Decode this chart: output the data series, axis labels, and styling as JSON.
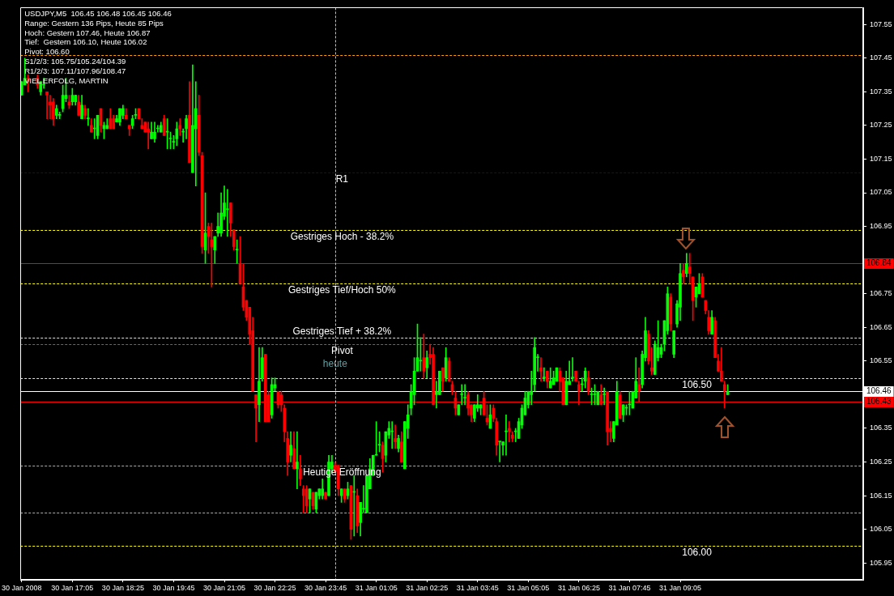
{
  "chart_data": {
    "type": "candlestick",
    "title": "USDJPY,M5  106.45 106.48 106.45 106.46",
    "annotations": [
      "Range: Gestern 136 Pips, Heute 85 Pips",
      "Hoch: Gestern 107.46, Heute 106.87",
      "Tief:  Gestern 106.10, Heute 106.02",
      "Pivot: 106.60",
      "S1/2/3: 105.75/105.24/104.39",
      "R1/2/3: 107.11/107.96/108.47",
      "VIEL ERFOLG, MARTIN",
      {
        "text": "heute",
        "x": "2008-01-31T00:00",
        "y": 106.54
      }
    ],
    "x": [
      "2008-01-30T15:45",
      "2008-01-30T15:50",
      "2008-01-30T15:55",
      "2008-01-30T16:10",
      "2008-01-30T16:15",
      "2008-01-30T16:20",
      "2008-01-30T16:25",
      "2008-01-30T16:30",
      "2008-01-30T16:35",
      "2008-01-30T16:40",
      "2008-01-30T16:45",
      "2008-01-30T16:50",
      "2008-01-30T16:55",
      "2008-01-30T17:00",
      "2008-01-30T17:05",
      "2008-01-30T17:10",
      "2008-01-30T17:15",
      "2008-01-30T17:20",
      "2008-01-30T17:25",
      "2008-01-30T17:30",
      "2008-01-30T17:35",
      "2008-01-30T17:40",
      "2008-01-30T17:45",
      "2008-01-30T17:50",
      "2008-01-30T17:55",
      "2008-01-30T18:00",
      "2008-01-30T18:05",
      "2008-01-30T18:10",
      "2008-01-30T18:15",
      "2008-01-30T18:20",
      "2008-01-30T18:25",
      "2008-01-30T18:30",
      "2008-01-30T18:35",
      "2008-01-30T18:40",
      "2008-01-30T18:45",
      "2008-01-30T18:50",
      "2008-01-30T18:55",
      "2008-01-30T19:00",
      "2008-01-30T19:05",
      "2008-01-30T19:10",
      "2008-01-30T19:15",
      "2008-01-30T19:20",
      "2008-01-30T19:25",
      "2008-01-30T19:30",
      "2008-01-30T19:35",
      "2008-01-30T19:40",
      "2008-01-30T19:45",
      "2008-01-30T19:50",
      "2008-01-30T19:55",
      "2008-01-30T20:00",
      "2008-01-30T20:05",
      "2008-01-30T20:10",
      "2008-01-30T20:15",
      "2008-01-30T20:20",
      "2008-01-30T20:25",
      "2008-01-30T20:30",
      "2008-01-30T20:35",
      "2008-01-30T20:40",
      "2008-01-30T20:45",
      "2008-01-30T20:50",
      "2008-01-30T20:55",
      "2008-01-30T21:00",
      "2008-01-30T21:05",
      "2008-01-30T21:10",
      "2008-01-30T21:15",
      "2008-01-30T21:20",
      "2008-01-30T21:25",
      "2008-01-30T21:30",
      "2008-01-30T21:35",
      "2008-01-30T21:40",
      "2008-01-30T21:45",
      "2008-01-30T21:50",
      "2008-01-30T21:55",
      "2008-01-30T22:00",
      "2008-01-30T22:05",
      "2008-01-30T22:10",
      "2008-01-30T22:15",
      "2008-01-30T22:20",
      "2008-01-30T22:25",
      "2008-01-30T22:30",
      "2008-01-30T22:35",
      "2008-01-30T22:40",
      "2008-01-30T22:45",
      "2008-01-30T22:50",
      "2008-01-30T22:55",
      "2008-01-30T23:00",
      "2008-01-30T23:05",
      "2008-01-30T23:10",
      "2008-01-30T23:15",
      "2008-01-30T23:20",
      "2008-01-30T23:25",
      "2008-01-30T23:30",
      "2008-01-30T23:35",
      "2008-01-30T23:40",
      "2008-01-30T23:45",
      "2008-01-30T23:50",
      "2008-01-30T23:55",
      "2008-01-31T00:00",
      "2008-01-31T00:05",
      "2008-01-31T00:10",
      "2008-01-31T00:15",
      "2008-01-31T00:20",
      "2008-01-31T00:25",
      "2008-01-31T00:30",
      "2008-01-31T00:35",
      "2008-01-31T00:40",
      "2008-01-31T00:45",
      "2008-01-31T00:50",
      "2008-01-31T00:55",
      "2008-01-31T01:00",
      "2008-01-31T01:05",
      "2008-01-31T01:10",
      "2008-01-31T01:15",
      "2008-01-31T01:20",
      "2008-01-31T01:25",
      "2008-01-31T01:30",
      "2008-01-31T01:35",
      "2008-01-31T01:40",
      "2008-01-31T01:45",
      "2008-01-31T01:50",
      "2008-01-31T01:55",
      "2008-01-31T02:00",
      "2008-01-31T02:05",
      "2008-01-31T02:10",
      "2008-01-31T02:15",
      "2008-01-31T02:20",
      "2008-01-31T02:25",
      "2008-01-31T02:30",
      "2008-01-31T02:35",
      "2008-01-31T02:40",
      "2008-01-31T02:45",
      "2008-01-31T02:50",
      "2008-01-31T02:55",
      "2008-01-31T03:00",
      "2008-01-31T03:05",
      "2008-01-31T03:10",
      "2008-01-31T03:15",
      "2008-01-31T03:20",
      "2008-01-31T03:25",
      "2008-01-31T03:30",
      "2008-01-31T03:35",
      "2008-01-31T03:40",
      "2008-01-31T03:45",
      "2008-01-31T03:50",
      "2008-01-31T03:55",
      "2008-01-31T04:00",
      "2008-01-31T04:05",
      "2008-01-31T04:10",
      "2008-01-31T04:15",
      "2008-01-31T04:20",
      "2008-01-31T04:25",
      "2008-01-31T04:30",
      "2008-01-31T04:35",
      "2008-01-31T04:40",
      "2008-01-31T04:45",
      "2008-01-31T04:50",
      "2008-01-31T04:55",
      "2008-01-31T05:00",
      "2008-01-31T05:05",
      "2008-01-31T05:10",
      "2008-01-31T05:15",
      "2008-01-31T05:20",
      "2008-01-31T05:25",
      "2008-01-31T05:30",
      "2008-01-31T05:35",
      "2008-01-31T05:40",
      "2008-01-31T05:45",
      "2008-01-31T05:50",
      "2008-01-31T05:55",
      "2008-01-31T06:00",
      "2008-01-31T06:05",
      "2008-01-31T06:10",
      "2008-01-31T06:15",
      "2008-01-31T06:20",
      "2008-01-31T06:25",
      "2008-01-31T06:30",
      "2008-01-31T06:35",
      "2008-01-31T06:40",
      "2008-01-31T06:45",
      "2008-01-31T06:50",
      "2008-01-31T06:55",
      "2008-01-31T07:00",
      "2008-01-31T07:05",
      "2008-01-31T07:10",
      "2008-01-31T07:15",
      "2008-01-31T07:20",
      "2008-01-31T07:25",
      "2008-01-31T07:30",
      "2008-01-31T07:35",
      "2008-01-31T07:40",
      "2008-01-31T07:45",
      "2008-01-31T07:50",
      "2008-01-31T07:55",
      "2008-01-31T08:00",
      "2008-01-31T08:05",
      "2008-01-31T08:10",
      "2008-01-31T08:15",
      "2008-01-31T08:20",
      "2008-01-31T08:25",
      "2008-01-31T08:30",
      "2008-01-31T08:35",
      "2008-01-31T08:40",
      "2008-01-31T08:45",
      "2008-01-31T08:50",
      "2008-01-31T08:55",
      "2008-01-31T09:00",
      "2008-01-31T09:05",
      "2008-01-31T09:10",
      "2008-01-31T09:15",
      "2008-01-31T09:20",
      "2008-01-31T09:25",
      "2008-01-31T09:30",
      "2008-01-31T09:35",
      "2008-01-31T09:40",
      "2008-01-31T09:45",
      "2008-01-31T09:50",
      "2008-01-31T09:55",
      "2008-01-31T10:00",
      "2008-01-31T10:05",
      "2008-01-31T10:10",
      "2008-01-31T10:15",
      "2008-01-31T10:20"
    ],
    "ohlc": [
      [
        107.34,
        107.38,
        107.34,
        107.38
      ],
      [
        107.37,
        107.45,
        107.37,
        107.39
      ],
      [
        107.39,
        107.4,
        107.35,
        107.38
      ],
      [
        107.39,
        107.4,
        107.36,
        107.37
      ],
      [
        107.35,
        107.38,
        107.34,
        107.38
      ],
      [
        107.37,
        107.39,
        107.36,
        107.37
      ],
      [
        107.35,
        107.35,
        107.27,
        107.34
      ],
      [
        107.32,
        107.34,
        107.27,
        107.31
      ],
      [
        107.32,
        107.33,
        107.25,
        107.27
      ],
      [
        107.28,
        107.31,
        107.27,
        107.3
      ],
      [
        107.28,
        107.29,
        107.27,
        107.28
      ],
      [
        107.3,
        107.37,
        107.29,
        107.34
      ],
      [
        107.33,
        107.39,
        107.32,
        107.34
      ],
      [
        107.32,
        107.34,
        107.3,
        107.31
      ],
      [
        107.32,
        107.36,
        107.31,
        107.34
      ],
      [
        107.32,
        107.34,
        107.31,
        107.34
      ],
      [
        107.32,
        107.34,
        107.28,
        107.28
      ],
      [
        107.27,
        107.34,
        107.27,
        107.31
      ],
      [
        107.3,
        107.31,
        107.27,
        107.28
      ],
      [
        107.27,
        107.3,
        107.25,
        107.27
      ],
      [
        107.25,
        107.27,
        107.23,
        107.23
      ],
      [
        107.24,
        107.27,
        107.21,
        107.24
      ],
      [
        107.22,
        107.28,
        107.21,
        107.28
      ],
      [
        107.3,
        107.3,
        107.23,
        107.25
      ],
      [
        107.24,
        107.26,
        107.21,
        107.25
      ],
      [
        107.24,
        107.27,
        107.24,
        107.25
      ],
      [
        107.27,
        107.3,
        107.24,
        107.24
      ],
      [
        107.27,
        107.28,
        107.24,
        107.24
      ],
      [
        107.26,
        107.28,
        107.26,
        107.27
      ],
      [
        107.26,
        107.3,
        107.25,
        107.3
      ],
      [
        107.28,
        107.31,
        107.27,
        107.3
      ],
      [
        107.28,
        107.3,
        107.27,
        107.27
      ],
      [
        107.25,
        107.25,
        107.22,
        107.24
      ],
      [
        107.25,
        107.28,
        107.24,
        107.27
      ],
      [
        107.28,
        107.3,
        107.27,
        107.28
      ],
      [
        107.3,
        107.3,
        107.27,
        107.27
      ],
      [
        107.25,
        107.27,
        107.24,
        107.24
      ],
      [
        107.26,
        107.26,
        107.23,
        107.23
      ],
      [
        107.24,
        107.26,
        107.18,
        107.23
      ],
      [
        107.21,
        107.26,
        107.21,
        107.23
      ],
      [
        107.21,
        107.26,
        107.2,
        107.23
      ],
      [
        107.24,
        107.25,
        107.23,
        107.24
      ],
      [
        107.23,
        107.26,
        107.23,
        107.25
      ],
      [
        107.27,
        107.28,
        107.22,
        107.22
      ],
      [
        107.23,
        107.27,
        107.18,
        107.23
      ],
      [
        107.21,
        107.23,
        107.18,
        107.21
      ],
      [
        107.2,
        107.22,
        107.18,
        107.2
      ],
      [
        107.21,
        107.26,
        107.19,
        107.24
      ],
      [
        107.25,
        107.27,
        107.22,
        107.24
      ],
      [
        107.23,
        107.24,
        107.2,
        107.23
      ],
      [
        107.24,
        107.28,
        107.21,
        107.27
      ],
      [
        107.28,
        107.38,
        107.14,
        107.14
      ],
      [
        107.11,
        107.43,
        107.11,
        107.25
      ],
      [
        107.24,
        107.38,
        107.07,
        107.3
      ],
      [
        107.28,
        107.34,
        107.16,
        107.17
      ],
      [
        107.16,
        107.17,
        106.87,
        106.89
      ],
      [
        106.88,
        107.05,
        106.84,
        106.93
      ],
      [
        106.95,
        106.96,
        106.87,
        106.92
      ],
      [
        106.91,
        106.96,
        106.77,
        106.89
      ],
      [
        106.88,
        106.92,
        106.84,
        106.92
      ],
      [
        106.93,
        106.99,
        106.92,
        106.95
      ],
      [
        106.93,
        107.05,
        106.92,
        106.99
      ],
      [
        106.98,
        107.07,
        106.97,
        107.02
      ],
      [
        107.0,
        107.06,
        106.92,
        107.0
      ],
      [
        107.02,
        107.02,
        106.92,
        106.96
      ],
      [
        106.94,
        106.94,
        106.88,
        106.89
      ],
      [
        106.88,
        106.91,
        106.84,
        106.88
      ],
      [
        106.84,
        106.92,
        106.78,
        106.78
      ],
      [
        106.77,
        106.84,
        106.7,
        106.71
      ],
      [
        106.73,
        106.73,
        106.67,
        106.68
      ],
      [
        106.71,
        106.71,
        106.6,
        106.63
      ],
      [
        106.64,
        106.68,
        106.46,
        106.46
      ],
      [
        106.45,
        106.45,
        106.31,
        106.41
      ],
      [
        106.42,
        106.59,
        106.37,
        106.49
      ],
      [
        106.5,
        106.59,
        106.49,
        106.56
      ],
      [
        106.57,
        106.57,
        106.37,
        106.37
      ],
      [
        106.45,
        106.46,
        106.37,
        106.37
      ],
      [
        106.39,
        106.5,
        106.38,
        106.48
      ],
      [
        106.47,
        106.5,
        106.46,
        106.48
      ],
      [
        106.46,
        106.46,
        106.41,
        106.42
      ],
      [
        106.45,
        106.46,
        106.4,
        106.42
      ],
      [
        106.41,
        106.42,
        106.31,
        106.34
      ],
      [
        106.32,
        106.34,
        106.21,
        106.25
      ],
      [
        106.27,
        106.34,
        106.25,
        106.3
      ],
      [
        106.29,
        106.34,
        106.23,
        106.23
      ],
      [
        106.23,
        106.34,
        106.17,
        106.25
      ],
      [
        106.23,
        106.27,
        106.18,
        106.2
      ],
      [
        106.17,
        106.18,
        106.1,
        106.15
      ],
      [
        106.17,
        106.18,
        106.1,
        106.12
      ],
      [
        106.14,
        106.17,
        106.1,
        106.17
      ],
      [
        106.16,
        106.16,
        106.11,
        106.12
      ],
      [
        106.11,
        106.16,
        106.1,
        106.16
      ],
      [
        106.15,
        106.17,
        106.14,
        106.17
      ],
      [
        106.15,
        106.2,
        106.14,
        106.17
      ],
      [
        106.16,
        106.16,
        106.14,
        106.14
      ],
      [
        106.15,
        106.27,
        106.15,
        106.25
      ],
      [
        106.23,
        106.27,
        106.22,
        106.25
      ],
      [
        106.24,
        106.25,
        106.22,
        106.22
      ],
      [
        106.24,
        106.24,
        106.15,
        106.17
      ],
      [
        106.15,
        106.17,
        106.13,
        106.17
      ],
      [
        106.17,
        106.17,
        106.13,
        106.14
      ],
      [
        106.15,
        106.19,
        106.14,
        106.17
      ],
      [
        106.18,
        106.18,
        106.02,
        106.05
      ],
      [
        106.16,
        106.21,
        106.03,
        106.16
      ],
      [
        106.15,
        106.17,
        106.04,
        106.06
      ],
      [
        106.07,
        106.13,
        106.03,
        106.13
      ],
      [
        106.11,
        106.18,
        106.1,
        106.11
      ],
      [
        106.1,
        106.21,
        106.1,
        106.21
      ],
      [
        106.17,
        106.26,
        106.17,
        106.23
      ],
      [
        106.21,
        106.27,
        106.21,
        106.27
      ],
      [
        106.27,
        106.37,
        106.27,
        106.27
      ],
      [
        106.3,
        106.34,
        106.28,
        106.3
      ],
      [
        106.3,
        106.31,
        106.22,
        106.26
      ],
      [
        106.27,
        106.34,
        106.25,
        106.34
      ],
      [
        106.33,
        106.37,
        106.32,
        106.35
      ],
      [
        106.34,
        106.37,
        106.29,
        106.34
      ],
      [
        106.32,
        106.36,
        106.29,
        106.31
      ],
      [
        106.29,
        106.33,
        106.28,
        106.32
      ],
      [
        106.31,
        106.34,
        106.25,
        106.25
      ],
      [
        106.23,
        106.37,
        106.23,
        106.37
      ],
      [
        106.35,
        106.42,
        106.32,
        106.39
      ],
      [
        106.41,
        106.48,
        106.39,
        106.46
      ],
      [
        106.45,
        106.56,
        106.42,
        106.52
      ],
      [
        106.52,
        106.66,
        106.52,
        106.56
      ],
      [
        106.55,
        106.62,
        106.52,
        106.55
      ],
      [
        106.56,
        106.63,
        106.5,
        106.52
      ],
      [
        106.53,
        106.58,
        106.5,
        106.56
      ],
      [
        106.57,
        106.6,
        106.54,
        106.56
      ],
      [
        106.57,
        106.59,
        106.42,
        106.42
      ],
      [
        106.45,
        106.49,
        106.41,
        106.46
      ],
      [
        106.45,
        106.52,
        106.45,
        106.52
      ],
      [
        106.53,
        106.53,
        106.46,
        106.49
      ],
      [
        106.5,
        106.59,
        106.49,
        106.56
      ],
      [
        106.55,
        106.56,
        106.49,
        106.49
      ],
      [
        106.48,
        106.49,
        106.45,
        106.46
      ],
      [
        106.44,
        106.46,
        106.39,
        106.41
      ],
      [
        106.39,
        106.42,
        106.39,
        106.42
      ],
      [
        106.45,
        106.48,
        106.42,
        106.45
      ],
      [
        106.44,
        106.48,
        106.42,
        106.44
      ],
      [
        106.45,
        106.46,
        106.39,
        106.41
      ],
      [
        106.42,
        106.42,
        106.37,
        106.39
      ],
      [
        106.38,
        106.42,
        106.37,
        106.42
      ],
      [
        106.41,
        106.45,
        106.4,
        106.42
      ],
      [
        106.41,
        106.42,
        106.39,
        106.42
      ],
      [
        106.44,
        106.46,
        106.39,
        106.39
      ],
      [
        106.38,
        106.42,
        106.36,
        106.37
      ],
      [
        106.35,
        106.42,
        106.35,
        106.39
      ],
      [
        106.41,
        106.42,
        106.37,
        106.38
      ],
      [
        106.37,
        106.38,
        106.27,
        106.3
      ],
      [
        106.31,
        106.31,
        106.25,
        106.31
      ],
      [
        106.3,
        106.31,
        106.27,
        106.31
      ],
      [
        106.34,
        106.39,
        106.27,
        106.34
      ],
      [
        106.35,
        106.37,
        106.31,
        106.34
      ],
      [
        106.33,
        106.34,
        106.31,
        106.32
      ],
      [
        106.34,
        106.35,
        106.31,
        106.34
      ],
      [
        106.32,
        106.38,
        106.32,
        106.37
      ],
      [
        106.36,
        106.42,
        106.35,
        106.41
      ],
      [
        106.39,
        106.46,
        106.39,
        106.44
      ],
      [
        106.42,
        106.46,
        106.41,
        106.46
      ],
      [
        106.45,
        106.52,
        106.42,
        106.46
      ],
      [
        106.48,
        106.62,
        106.46,
        106.59
      ],
      [
        106.56,
        106.57,
        106.52,
        106.56
      ],
      [
        106.53,
        106.56,
        106.49,
        106.52
      ],
      [
        106.5,
        106.53,
        106.49,
        106.5
      ],
      [
        106.52,
        106.52,
        106.47,
        106.49
      ],
      [
        106.47,
        106.53,
        106.47,
        106.49
      ],
      [
        106.48,
        106.52,
        106.48,
        106.5
      ],
      [
        106.49,
        106.53,
        106.49,
        106.53
      ],
      [
        106.52,
        106.53,
        106.46,
        106.49
      ],
      [
        106.5,
        106.5,
        106.42,
        106.42
      ],
      [
        106.42,
        106.52,
        106.42,
        106.49
      ],
      [
        106.48,
        106.55,
        106.48,
        106.49
      ],
      [
        106.5,
        106.56,
        106.49,
        106.5
      ],
      [
        106.52,
        106.52,
        106.49,
        106.49
      ],
      [
        106.48,
        106.49,
        106.42,
        106.46
      ],
      [
        106.48,
        106.5,
        106.46,
        106.48
      ],
      [
        106.49,
        106.53,
        106.47,
        106.52
      ],
      [
        106.5,
        106.52,
        106.45,
        106.46
      ],
      [
        106.45,
        106.47,
        106.42,
        106.45
      ],
      [
        106.45,
        106.48,
        106.42,
        106.45
      ],
      [
        106.42,
        106.46,
        106.42,
        106.46
      ],
      [
        106.45,
        106.48,
        106.42,
        106.42
      ],
      [
        106.45,
        106.47,
        106.42,
        106.45
      ],
      [
        106.46,
        106.46,
        106.3,
        106.34
      ],
      [
        106.35,
        106.37,
        106.31,
        106.34
      ],
      [
        106.32,
        106.37,
        106.31,
        106.37
      ],
      [
        106.36,
        106.49,
        106.36,
        106.46
      ],
      [
        106.45,
        106.46,
        106.38,
        106.38
      ],
      [
        106.39,
        106.42,
        106.37,
        106.42
      ],
      [
        106.41,
        106.42,
        106.39,
        106.41
      ],
      [
        106.42,
        106.46,
        106.39,
        106.42
      ],
      [
        106.41,
        106.46,
        106.41,
        106.46
      ],
      [
        106.44,
        106.56,
        106.44,
        106.49
      ],
      [
        106.48,
        106.53,
        106.43,
        106.46
      ],
      [
        106.48,
        106.58,
        106.47,
        106.57
      ],
      [
        106.56,
        106.68,
        106.55,
        106.64
      ],
      [
        106.63,
        106.64,
        106.54,
        106.55
      ],
      [
        106.53,
        106.59,
        106.51,
        106.52
      ],
      [
        106.51,
        106.61,
        106.51,
        106.6
      ],
      [
        106.56,
        106.67,
        106.55,
        106.59
      ],
      [
        106.57,
        106.6,
        106.56,
        106.59
      ],
      [
        106.6,
        106.67,
        106.58,
        106.67
      ],
      [
        106.64,
        106.77,
        106.63,
        106.75
      ],
      [
        106.74,
        106.75,
        106.64,
        106.66
      ],
      [
        106.57,
        106.64,
        106.56,
        106.64
      ],
      [
        106.66,
        106.73,
        106.65,
        106.72
      ],
      [
        106.71,
        106.84,
        106.67,
        106.81
      ],
      [
        106.82,
        106.84,
        106.78,
        106.8
      ],
      [
        106.81,
        106.87,
        106.8,
        106.84
      ],
      [
        106.83,
        106.87,
        106.78,
        106.81
      ],
      [
        106.8,
        106.8,
        106.67,
        106.73
      ],
      [
        106.74,
        106.77,
        106.71,
        106.77
      ],
      [
        106.75,
        106.81,
        106.75,
        106.78
      ],
      [
        106.8,
        106.81,
        106.74,
        106.74
      ],
      [
        106.73,
        106.73,
        106.69,
        106.7
      ],
      [
        106.68,
        106.7,
        106.63,
        106.64
      ],
      [
        106.63,
        106.7,
        106.63,
        106.68
      ],
      [
        106.67,
        106.68,
        106.56,
        106.56
      ],
      [
        106.55,
        106.57,
        106.52,
        106.52
      ],
      [
        106.52,
        106.59,
        106.49,
        106.49
      ],
      [
        106.48,
        106.49,
        106.41,
        106.46
      ],
      [
        106.45,
        106.48,
        106.45,
        106.46
      ]
    ],
    "colors": [
      "#00ff00",
      "#00ff00",
      "#ff0000",
      "#ff0000",
      "#00ff00",
      "#00ff00",
      "#ff0000",
      "#ff0000",
      "#ff0000",
      "#00ff00",
      "#00ff00",
      "#00ff00",
      "#00ff00",
      "#ff0000",
      "#00ff00",
      "#00ff00",
      "#ff0000",
      "#00ff00",
      "#ff0000",
      "#00ff00",
      "#ff0000",
      "#00ff00",
      "#00ff00",
      "#ff0000",
      "#00ff00",
      "#00ff00",
      "#ff0000",
      "#ff0000",
      "#00ff00",
      "#00ff00",
      "#00ff00",
      "#ff0000",
      "#ff0000",
      "#00ff00",
      "#00ff00",
      "#ff0000",
      "#ff0000",
      "#ff0000",
      "#ff0000",
      "#00ff00",
      "#00ff00",
      "#00ff00",
      "#00ff00",
      "#ff0000",
      "#00ff00",
      "#00ff00",
      "#00ff00",
      "#00ff00",
      "#ff0000",
      "#00ff00",
      "#00ff00",
      "#ff0000",
      "#00ff00",
      "#00ff00",
      "#ff0000",
      "#ff0000",
      "#00ff00",
      "#ff0000",
      "#ff0000",
      "#00ff00",
      "#00ff00",
      "#00ff00",
      "#00ff00",
      "#00ff00",
      "#ff0000",
      "#ff0000",
      "#00ff00",
      "#ff0000",
      "#ff0000",
      "#ff0000",
      "#ff0000",
      "#ff0000",
      "#ff0000",
      "#00ff00",
      "#00ff00",
      "#ff0000",
      "#ff0000",
      "#00ff00",
      "#00ff00",
      "#ff0000",
      "#ff0000",
      "#ff0000",
      "#ff0000",
      "#00ff00",
      "#ff0000",
      "#00ff00",
      "#ff0000",
      "#ff0000",
      "#ff0000",
      "#00ff00",
      "#ff0000",
      "#00ff00",
      "#00ff00",
      "#00ff00",
      "#ff0000",
      "#00ff00",
      "#00ff00",
      "#ff0000",
      "#ff0000",
      "#00ff00",
      "#ff0000",
      "#00ff00",
      "#ff0000",
      "#00ff00",
      "#ff0000",
      "#00ff00",
      "#00ff00",
      "#00ff00",
      "#00ff00",
      "#00ff00",
      "#00ff00",
      "#00ff00",
      "#ff0000",
      "#00ff00",
      "#00ff00",
      "#00ff00",
      "#ff0000",
      "#00ff00",
      "#ff0000",
      "#00ff00",
      "#00ff00",
      "#00ff00",
      "#00ff00",
      "#00ff00",
      "#00ff00",
      "#ff0000",
      "#00ff00",
      "#ff0000",
      "#ff0000",
      "#00ff00",
      "#00ff00",
      "#ff0000",
      "#00ff00",
      "#ff0000",
      "#ff0000",
      "#ff0000",
      "#00ff00",
      "#00ff00",
      "#00ff00",
      "#ff0000",
      "#ff0000",
      "#00ff00",
      "#00ff00",
      "#00ff00",
      "#ff0000",
      "#ff0000",
      "#00ff00",
      "#ff0000",
      "#ff0000",
      "#00ff00",
      "#00ff00",
      "#00ff00",
      "#ff0000",
      "#ff0000",
      "#00ff00",
      "#00ff00",
      "#00ff00",
      "#00ff00",
      "#00ff00",
      "#00ff00",
      "#00ff00",
      "#00ff00",
      "#ff0000",
      "#00ff00",
      "#ff0000",
      "#00ff00",
      "#00ff00",
      "#00ff00",
      "#ff0000",
      "#ff0000",
      "#00ff00",
      "#00ff00",
      "#00ff00",
      "#ff0000",
      "#ff0000",
      "#00ff00",
      "#00ff00",
      "#ff0000",
      "#00ff00",
      "#00ff00",
      "#00ff00",
      "#ff0000",
      "#00ff00",
      "#ff0000",
      "#ff0000",
      "#00ff00",
      "#00ff00",
      "#ff0000",
      "#00ff00",
      "#00ff00",
      "#00ff00",
      "#00ff00",
      "#00ff00",
      "#ff0000",
      "#00ff00",
      "#00ff00",
      "#ff0000",
      "#ff0000",
      "#00ff00",
      "#00ff00",
      "#00ff00",
      "#00ff00",
      "#00ff00",
      "#ff0000",
      "#00ff00",
      "#00ff00",
      "#00ff00",
      "#ff0000",
      "#00ff00",
      "#ff0000",
      "#ff0000",
      "#00ff00",
      "#00ff00",
      "#ff0000",
      "#ff0000",
      "#ff0000",
      "#00ff00",
      "#ff0000",
      "#ff0000",
      "#ff0000",
      "#ff0000",
      "#00ff00"
    ],
    "xlim": [
      "2008-01-30T15:43",
      "2008-01-31T13:54"
    ],
    "xticks": [
      {
        "value": "2008-01-30T15:45",
        "label": "30 Jan 2008"
      },
      {
        "value": "2008-01-30T17:05",
        "label": "30 Jan 17:05"
      },
      {
        "value": "2008-01-30T18:25",
        "label": "30 Jan 18:25"
      },
      {
        "value": "2008-01-30T19:45",
        "label": "30 Jan 19:45"
      },
      {
        "value": "2008-01-30T21:05",
        "label": "30 Jan 21:05"
      },
      {
        "value": "2008-01-30T22:25",
        "label": "30 Jan 22:25"
      },
      {
        "value": "2008-01-30T23:45",
        "label": "30 Jan 23:45"
      },
      {
        "value": "2008-01-31T01:05",
        "label": "31 Jan 01:05"
      },
      {
        "value": "2008-01-31T02:25",
        "label": "31 Jan 02:25"
      },
      {
        "value": "2008-01-31T03:45",
        "label": "31 Jan 03:45"
      },
      {
        "value": "2008-01-31T05:05",
        "label": "31 Jan 05:05"
      },
      {
        "value": "2008-01-31T06:25",
        "label": "31 Jan 06:25"
      },
      {
        "value": "2008-01-31T07:45",
        "label": "31 Jan 07:45"
      },
      {
        "value": "2008-01-31T09:05",
        "label": "31 Jan 09:05"
      }
    ],
    "ylim": [
      105.9,
      107.6
    ],
    "yticks": [
      107.55,
      107.45,
      107.35,
      107.25,
      107.15,
      107.05,
      106.95,
      {
        "value": 106.85,
        "label": null
      },
      106.75,
      106.65,
      106.55,
      {
        "value": 106.45,
        "label": null
      },
      106.35,
      106.25,
      106.15,
      106.05,
      105.95
    ],
    "ref_lines": [
      {
        "axis": "y",
        "value": 107.46,
        "color": "#ffa500",
        "line_style": "dashed"
      },
      {
        "axis": "y",
        "value": 107.11,
        "label": "R1",
        "color": "#0000cc",
        "line_style": "dashed"
      },
      {
        "axis": "y",
        "value": 106.94,
        "label": "Gestriges Hoch - 38.2%",
        "color": "#ffff00",
        "line_style": "dashed"
      },
      {
        "axis": "y",
        "value": 106.84,
        "label": "106.84",
        "color": "#ff0000",
        "line_style": "solid"
      },
      {
        "axis": "y",
        "value": 106.78,
        "label": "Gestriges Tief/Hoch 50%",
        "color": "#ffff00",
        "line_style": "dashed"
      },
      {
        "axis": "y",
        "value": 106.62,
        "label": "Gestriges Tief + 38.2%",
        "color": "#ffff00",
        "line_style": "dashed"
      },
      {
        "axis": "y",
        "value": 106.6,
        "label": "Pivot",
        "color": "#ff00ff",
        "line_style": "dashed"
      },
      {
        "axis": "y",
        "value": 106.5,
        "label": "106.50",
        "color": "#ffff00",
        "line_style": "dashed"
      },
      {
        "axis": "y",
        "value": 106.46,
        "label": "106.46",
        "color": "#ffffff",
        "line_style": "solid"
      },
      {
        "axis": "y",
        "value": 106.43,
        "label": "106.43",
        "color": "#ff0000",
        "line_style": "solid"
      },
      {
        "axis": "y",
        "value": 106.24,
        "label": "Heutige Eröffnung",
        "color": "#ffa500",
        "line_style": "dashed"
      },
      {
        "axis": "y",
        "value": 106.1,
        "color": "#ffa500",
        "line_style": "dashed"
      },
      {
        "axis": "y",
        "value": 106.0,
        "label": "106.00",
        "color": "#ffff00",
        "line_style": "dashed"
      },
      {
        "axis": "x",
        "value": "2008-01-31T00:00",
        "color": "#c0c0c0",
        "line_style": "dashed"
      }
    ]
  }
}
